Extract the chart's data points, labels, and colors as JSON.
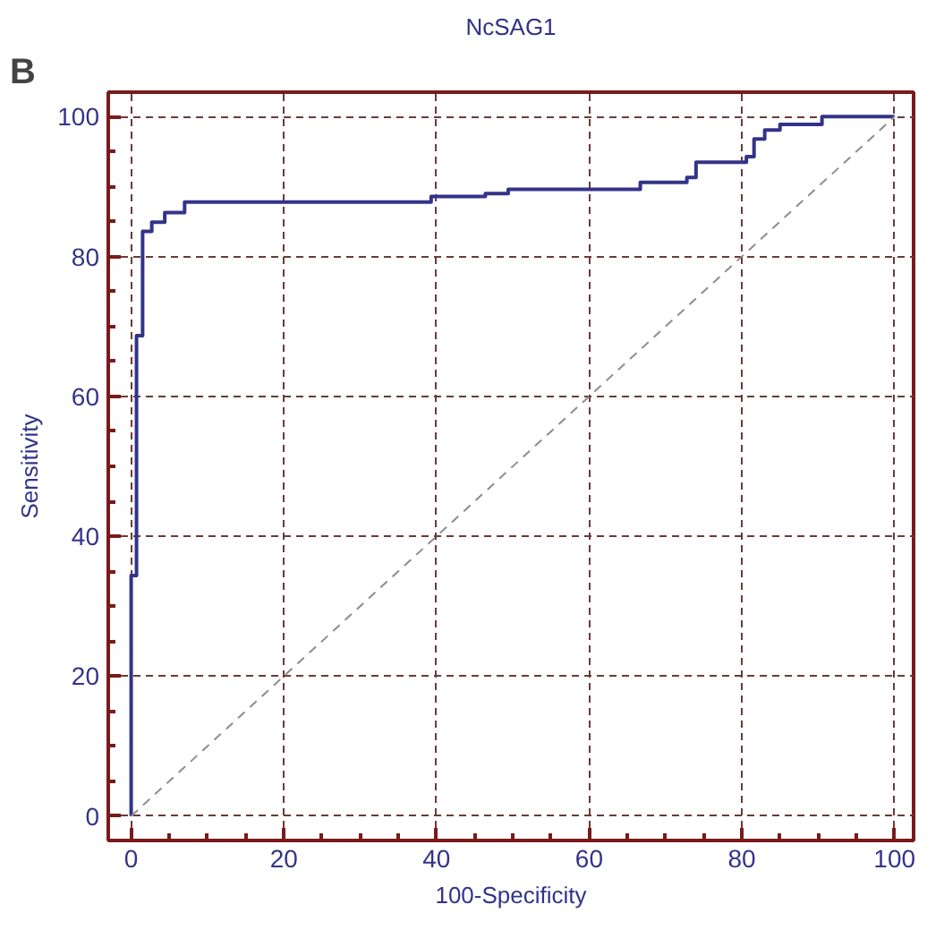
{
  "chart_data": {
    "type": "step",
    "title": "NcSAG1",
    "xlabel": "100-Specificity",
    "ylabel": "Sensitivity",
    "annotations": [
      "B"
    ],
    "xlim": [
      -3,
      102.5
    ],
    "ylim": [
      -3.5,
      103.5
    ],
    "xticks": [
      0,
      {
        "value": 5,
        "label": null
      },
      {
        "value": 10,
        "label": null
      },
      {
        "value": 15,
        "label": null
      },
      20,
      {
        "value": 25,
        "label": null
      },
      {
        "value": 30,
        "label": null
      },
      {
        "value": 35,
        "label": null
      },
      40,
      {
        "value": 45,
        "label": null
      },
      {
        "value": 50,
        "label": null
      },
      {
        "value": 55,
        "label": null
      },
      60,
      {
        "value": 65,
        "label": null
      },
      {
        "value": 70,
        "label": null
      },
      {
        "value": 75,
        "label": null
      },
      80,
      {
        "value": 85,
        "label": null
      },
      {
        "value": 90,
        "label": null
      },
      {
        "value": 95,
        "label": null
      },
      100
    ],
    "yticks": [
      0,
      {
        "value": 5,
        "label": null
      },
      {
        "value": 10,
        "label": null
      },
      {
        "value": 15,
        "label": null
      },
      20,
      {
        "value": 25,
        "label": null
      },
      {
        "value": 30,
        "label": null
      },
      {
        "value": 35,
        "label": null
      },
      40,
      {
        "value": 45,
        "label": null
      },
      {
        "value": 50,
        "label": null
      },
      {
        "value": 55,
        "label": null
      },
      60,
      {
        "value": 65,
        "label": null
      },
      {
        "value": 70,
        "label": null
      },
      {
        "value": 75,
        "label": null
      },
      80,
      {
        "value": 85,
        "label": null
      },
      {
        "value": 90,
        "label": null
      },
      {
        "value": 95,
        "label": null
      },
      100
    ],
    "grid": true,
    "marker": "none",
    "series": [
      {
        "color": "#33338a",
        "line_style": "solid",
        "x": [
          0,
          0,
          0.7,
          0.7,
          1.5,
          1.5,
          2.7,
          2.7,
          4.4,
          4.4,
          7,
          7,
          39.3,
          39.3,
          46.4,
          46.4,
          49.4,
          49.4,
          66.7,
          66.7,
          72.8,
          72.8,
          74,
          74,
          80.6,
          80.6,
          81.6,
          81.6,
          83,
          83,
          85,
          85,
          90.5,
          90.5,
          100
        ],
        "values": [
          0,
          34.4,
          34.4,
          68.7,
          68.7,
          83.6,
          83.6,
          84.9,
          84.9,
          86.3,
          86.3,
          87.8,
          87.8,
          88.6,
          88.6,
          89,
          89,
          89.6,
          89.6,
          90.6,
          90.6,
          91.3,
          91.3,
          93.5,
          93.5,
          94.3,
          94.3,
          96.8,
          96.8,
          98.1,
          98.1,
          98.9,
          98.9,
          100,
          100
        ]
      },
      {
        "type": "line",
        "color": "#8c8c8c",
        "line_style": "dashed",
        "x": [
          0,
          100
        ],
        "values": [
          0,
          100
        ]
      }
    ]
  }
}
